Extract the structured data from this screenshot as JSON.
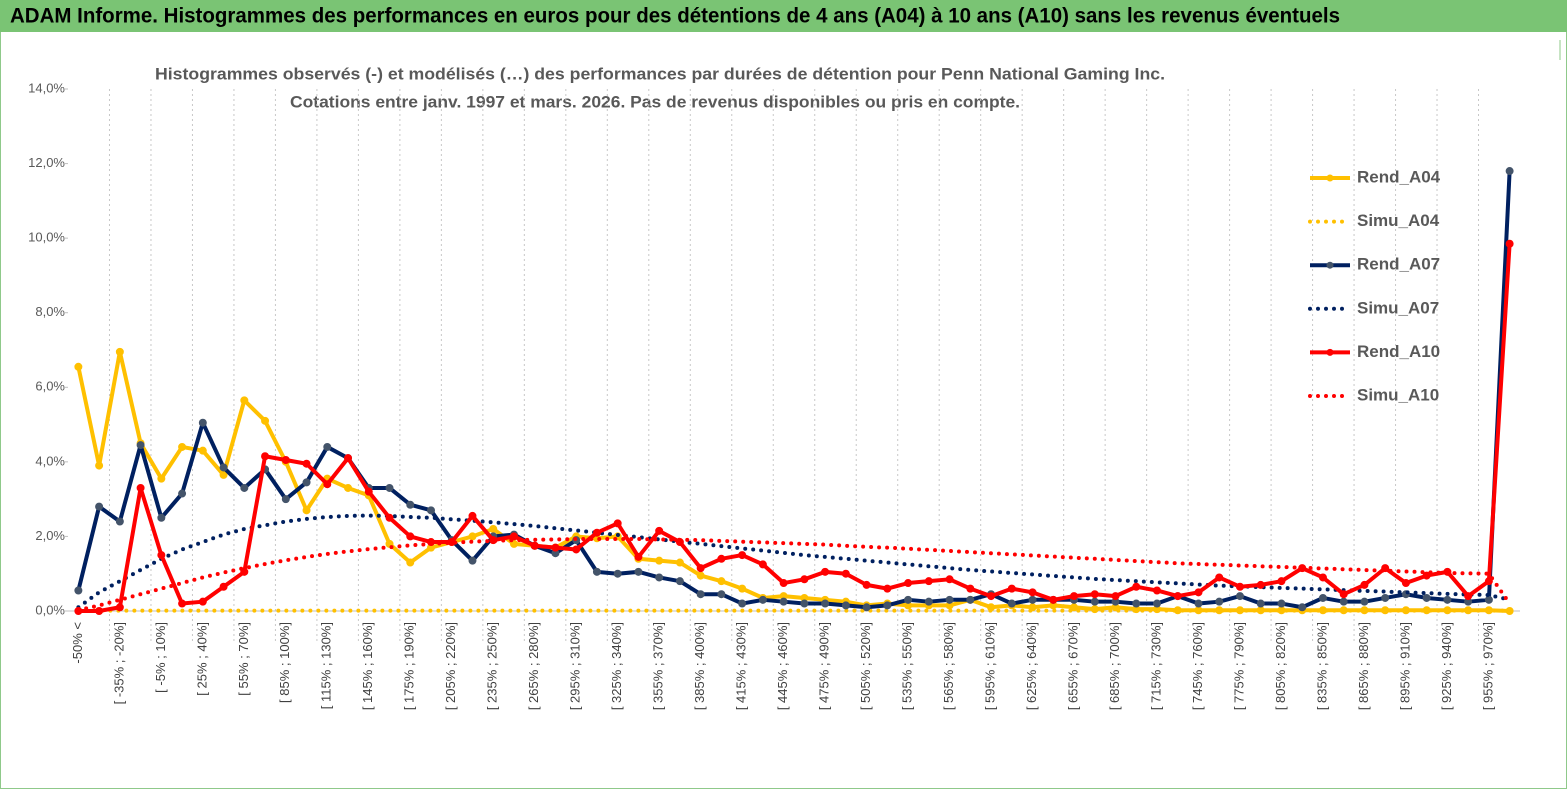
{
  "chart_data": {
    "type": "line",
    "header": "ADAM Informe. Histogrammes des performances en euros pour des détentions de 4 ans (A04) à 10 ans (A10) sans les revenus éventuels",
    "title": "Histogrammes observés (-)  et modélisés (…) des performances par durées de détention pour Penn National Gaming Inc.",
    "subtitle": "Cotations entre janv. 1997 et mars. 2026. Pas de revenus disponibles ou pris en compte.",
    "categories": [
      "-50% <",
      null,
      "[ -35% ; -20%]",
      null,
      "[ -5% ; 10%]",
      null,
      "[ 25% ; 40%]",
      null,
      "[ 55% ; 70%]",
      null,
      "[ 85% ; 100%]",
      null,
      "[ 115% ; 130%]",
      null,
      "[ 145% ; 160%]",
      null,
      "[ 175% ; 190%]",
      null,
      "[ 205% ; 220%]",
      null,
      "[ 235% ; 250%]",
      null,
      "[ 265% ; 280%]",
      null,
      "[ 295% ; 310%]",
      null,
      "[ 325% ; 340%]",
      null,
      "[ 355% ; 370%]",
      null,
      "[ 385% ; 400%]",
      null,
      "[ 415% ; 430%]",
      null,
      "[ 445% ; 460%]",
      null,
      "[ 475% ; 490%]",
      null,
      "[ 505% ; 520%]",
      null,
      "[ 535% ; 550%]",
      null,
      "[ 565% ; 580%]",
      null,
      "[ 595% ; 610%]",
      null,
      "[ 625% ; 640%]",
      null,
      "[ 655% ; 670%]",
      null,
      "[ 685% ; 700%]",
      null,
      "[ 715% ; 730%]",
      null,
      "[ 745% ; 760%]",
      null,
      "[ 775% ; 790%]",
      null,
      "[ 805% ; 820%]",
      null,
      "[ 835% ; 850%]",
      null,
      "[ 865% ; 880%]",
      null,
      "[ 895% ; 910%]",
      null,
      "[ 925% ; 940%]",
      null,
      "[ 955% ; 970%]",
      null
    ],
    "series": [
      {
        "name": "Rend_A04",
        "color": "#ffc000",
        "line_style": "solid",
        "markers": true,
        "values": [
          6.55,
          3.9,
          6.95,
          4.5,
          3.55,
          4.4,
          4.3,
          3.65,
          5.65,
          5.1,
          4.0,
          2.7,
          3.55,
          3.3,
          3.1,
          1.8,
          1.3,
          1.7,
          1.85,
          2.0,
          2.2,
          1.8,
          1.75,
          1.7,
          2.0,
          1.95,
          2.0,
          1.4,
          1.35,
          1.3,
          0.95,
          0.8,
          0.6,
          0.35,
          0.4,
          0.35,
          0.3,
          0.25,
          0.15,
          0.2,
          0.15,
          0.15,
          0.15,
          0.3,
          0.1,
          0.15,
          0.1,
          0.15,
          0.1,
          0.05,
          0.1,
          0.05,
          0.05,
          0.02,
          0.02,
          0.02,
          0.02,
          0.02,
          0.02,
          0.02,
          0.02,
          0.02,
          0.02,
          0.02,
          0.02,
          0.02,
          0.02,
          0.02,
          0.02,
          0.0
        ]
      },
      {
        "name": "Simu_A04",
        "color": "#ffc000",
        "line_style": "dotted",
        "markers": false,
        "values": [
          0.01,
          0.01,
          0.01,
          0.01,
          0.01,
          0.01,
          0.01,
          0.01,
          0.01,
          0.01,
          0.01,
          0.01,
          0.01,
          0.01,
          0.01,
          0.01,
          0.01,
          0.01,
          0.01,
          0.01,
          0.01,
          0.01,
          0.01,
          0.01,
          0.01,
          0.01,
          0.01,
          0.01,
          0.01,
          0.01,
          0.01,
          0.01,
          0.01,
          0.01,
          0.01,
          0.01,
          0.01,
          0.01,
          0.01,
          0.01,
          0.01,
          0.01,
          0.01,
          0.01,
          0.01,
          0.01,
          0.01,
          0.01,
          0.01,
          0.01,
          0.01,
          0.01,
          0.01,
          0.01,
          0.01,
          0.01,
          0.01,
          0.01,
          0.01,
          0.01,
          0.01,
          0.01,
          0.01,
          0.01,
          0.01,
          0.01,
          0.01,
          0.01,
          0.01,
          0.01
        ]
      },
      {
        "name": "Rend_A07",
        "color": "#002060",
        "line_style": "solid",
        "markers": true,
        "marker_color": "#44546a",
        "values": [
          0.55,
          2.8,
          2.4,
          4.45,
          2.5,
          3.15,
          5.05,
          3.85,
          3.3,
          3.8,
          3.0,
          3.45,
          4.4,
          4.1,
          3.3,
          3.3,
          2.85,
          2.7,
          1.9,
          1.35,
          2.0,
          2.05,
          1.75,
          1.55,
          1.9,
          1.05,
          1.0,
          1.05,
          0.9,
          0.8,
          0.45,
          0.45,
          0.2,
          0.3,
          0.25,
          0.2,
          0.2,
          0.15,
          0.1,
          0.15,
          0.3,
          0.25,
          0.3,
          0.3,
          0.45,
          0.2,
          0.3,
          0.3,
          0.3,
          0.25,
          0.25,
          0.2,
          0.2,
          0.4,
          0.2,
          0.25,
          0.4,
          0.2,
          0.2,
          0.1,
          0.35,
          0.25,
          0.25,
          0.35,
          0.45,
          0.35,
          0.3,
          0.25,
          0.3,
          11.8
        ]
      },
      {
        "name": "Simu_A07",
        "color": "#002060",
        "line_style": "dotted",
        "markers": false,
        "values": [
          0.1,
          0.5,
          0.8,
          1.1,
          1.4,
          1.65,
          1.85,
          2.05,
          2.2,
          2.3,
          2.4,
          2.47,
          2.52,
          2.55,
          2.56,
          2.55,
          2.52,
          2.5,
          2.46,
          2.42,
          2.38,
          2.33,
          2.28,
          2.22,
          2.16,
          2.1,
          2.04,
          1.98,
          1.92,
          1.86,
          1.8,
          1.74,
          1.68,
          1.62,
          1.56,
          1.5,
          1.45,
          1.4,
          1.35,
          1.3,
          1.25,
          1.2,
          1.15,
          1.1,
          1.06,
          1.02,
          0.98,
          0.94,
          0.9,
          0.86,
          0.83,
          0.8,
          0.77,
          0.74,
          0.71,
          0.68,
          0.66,
          0.64,
          0.62,
          0.6,
          0.58,
          0.56,
          0.54,
          0.52,
          0.5,
          0.48,
          0.46,
          0.44,
          0.43,
          0.3
        ]
      },
      {
        "name": "Rend_A10",
        "color": "#ff0000",
        "line_style": "solid",
        "markers": true,
        "marker_color": "#ff0000",
        "values": [
          0.0,
          0.0,
          0.1,
          3.3,
          1.5,
          0.2,
          0.25,
          0.65,
          1.05,
          4.15,
          4.05,
          3.95,
          3.4,
          4.1,
          3.2,
          2.5,
          2.0,
          1.85,
          1.85,
          2.55,
          1.9,
          2.0,
          1.75,
          1.7,
          1.65,
          2.1,
          2.35,
          1.45,
          2.15,
          1.85,
          1.15,
          1.4,
          1.5,
          1.25,
          0.75,
          0.85,
          1.05,
          1.0,
          0.7,
          0.6,
          0.75,
          0.8,
          0.85,
          0.6,
          0.4,
          0.6,
          0.5,
          0.3,
          0.4,
          0.45,
          0.4,
          0.65,
          0.55,
          0.4,
          0.5,
          0.9,
          0.65,
          0.7,
          0.8,
          1.15,
          0.9,
          0.45,
          0.7,
          1.15,
          0.75,
          0.95,
          1.05,
          0.4,
          0.8,
          9.85
        ]
      },
      {
        "name": "Simu_A10",
        "color": "#ff0000",
        "line_style": "dotted",
        "markers": false,
        "values": [
          0.02,
          0.15,
          0.3,
          0.45,
          0.6,
          0.75,
          0.9,
          1.03,
          1.15,
          1.26,
          1.36,
          1.45,
          1.53,
          1.6,
          1.66,
          1.71,
          1.76,
          1.8,
          1.83,
          1.86,
          1.88,
          1.9,
          1.91,
          1.92,
          1.93,
          1.93,
          1.93,
          1.93,
          1.92,
          1.91,
          1.9,
          1.88,
          1.86,
          1.84,
          1.82,
          1.8,
          1.78,
          1.75,
          1.72,
          1.7,
          1.67,
          1.64,
          1.61,
          1.58,
          1.55,
          1.52,
          1.49,
          1.46,
          1.43,
          1.4,
          1.37,
          1.34,
          1.31,
          1.28,
          1.26,
          1.24,
          1.22,
          1.2,
          1.18,
          1.16,
          1.14,
          1.12,
          1.1,
          1.08,
          1.06,
          1.04,
          1.02,
          1.01,
          1.0,
          0.2
        ]
      }
    ],
    "ylim": [
      0,
      14
    ],
    "yticks": [
      {
        "value": 0,
        "label": "0,0%"
      },
      {
        "value": 2,
        "label": "2,0%"
      },
      {
        "value": 4,
        "label": "4,0%"
      },
      {
        "value": 6,
        "label": "6,0%"
      },
      {
        "value": 8,
        "label": "8,0%"
      },
      {
        "value": 10,
        "label": "10,0%"
      },
      {
        "value": 12,
        "label": "12,0%"
      },
      {
        "value": 14,
        "label": "14,0%"
      }
    ],
    "grid": true,
    "legend": "right"
  }
}
